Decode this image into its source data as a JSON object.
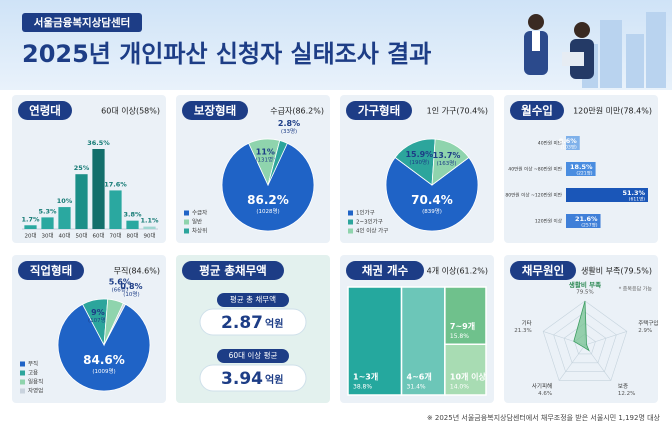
{
  "header": {
    "org": "서울금융복지상담센터",
    "title": "2025년 개인파산 신청자 실태조사 결과"
  },
  "chart_data": [
    {
      "type": "bar",
      "title": "연령대",
      "subtitle": "60대 이상(58%)",
      "categories": [
        "20대",
        "30대",
        "40대",
        "50대",
        "60대",
        "70대",
        "80대",
        "90대"
      ],
      "values": [
        1.7,
        5.3,
        10,
        25,
        36.5,
        17.6,
        3.8,
        1.1
      ],
      "value_labels": [
        "1.7%",
        "5.3%",
        "10%",
        "25%",
        "36.5%",
        "17.6%",
        "3.8%",
        "1.1%"
      ],
      "colors": [
        "#2aa8a0",
        "#2aa8a0",
        "#2aa8a0",
        "#1b8f88",
        "#136f6b",
        "#2aa8a0",
        "#2aa8a0",
        "#9fd6d1"
      ]
    },
    {
      "type": "pie",
      "title": "보장형태",
      "subtitle": "수급자(86.2%)",
      "categories": [
        "수급자",
        "일반",
        "차상위"
      ],
      "values": [
        86.2,
        11,
        2.8
      ],
      "value_labels": [
        "86.2%",
        "11%",
        "2.8%"
      ],
      "count_labels": [
        "(1028명)",
        "(131명)",
        "(33명)"
      ],
      "colors": [
        "#1f63c6",
        "#8fd4ad",
        "#2ca59c"
      ]
    },
    {
      "type": "pie",
      "title": "가구형태",
      "subtitle": "1인 가구(70.4%)",
      "categories": [
        "1인가구",
        "2~3인가구",
        "4인 이상 가구"
      ],
      "values": [
        70.4,
        15.9,
        13.7
      ],
      "value_labels": [
        "70.4%",
        "15.9%",
        "13.7%"
      ],
      "count_labels": [
        "(839명)",
        "(190명)",
        "(163명)"
      ],
      "colors": [
        "#1f63c6",
        "#2ca59c",
        "#8fd4ad"
      ]
    },
    {
      "type": "hbar",
      "title": "월수입",
      "subtitle": "120만원 미만(78.4%)",
      "categories": [
        "40만원 미만",
        "40만원 이상 ~80만원 미만",
        "80만원 이상 ~120만원 미만",
        "120만원 이상"
      ],
      "values": [
        8.6,
        18.5,
        51.3,
        21.6
      ],
      "value_labels": [
        "8.6%",
        "18.5%",
        "51.3%",
        "21.6%"
      ],
      "count_labels": [
        "(103명)",
        "(221명)",
        "(611명)",
        "(257명)"
      ],
      "colors": [
        "#7fb1ea",
        "#4a8de0",
        "#1a56b8",
        "#3f7fd8"
      ]
    },
    {
      "type": "pie",
      "title": "직업형태",
      "subtitle": "무직(84.6%)",
      "categories": [
        "무직",
        "고용",
        "일용직",
        "자영업"
      ],
      "values": [
        84.6,
        9,
        5.6,
        0.8
      ],
      "value_labels": [
        "84.6%",
        "9%",
        "5.6%",
        "0.8%"
      ],
      "count_labels": [
        "(1009명)",
        "(107명)",
        "(66명)",
        "(10명)"
      ],
      "colors": [
        "#1f63c6",
        "#2ca59c",
        "#8fd4ad",
        "#c9d3de"
      ]
    },
    {
      "type": "stat",
      "title": "평균 총채무액",
      "items": [
        {
          "label": "평균 총 채무액",
          "value": 2.87,
          "unit": "억원"
        },
        {
          "label": "60대 이상 평균",
          "value": 3.94,
          "unit": "억원"
        }
      ]
    },
    {
      "type": "treemap",
      "title": "채권 개수",
      "subtitle": "4개 이상(61.2%)",
      "categories": [
        "1~3개",
        "4~6개",
        "7~9개",
        "10개 이상"
      ],
      "values": [
        38.8,
        31.4,
        15.8,
        14.0
      ],
      "value_labels": [
        "38.8%",
        "31.4%",
        "15.8%",
        "14.0%"
      ],
      "colors": [
        "#25a89e",
        "#6cc6b8",
        "#6fc18c",
        "#a8dcb3"
      ]
    },
    {
      "type": "radar",
      "title": "채무원인",
      "subtitle": "생활비 부족(79.5%)",
      "note": "* 중복응답 가능",
      "categories": [
        "생활비 부족",
        "주택구입",
        "보증",
        "사기피해",
        "기타"
      ],
      "values": [
        79.5,
        2.9,
        12.2,
        4.6,
        21.3
      ],
      "value_labels": [
        "79.5%",
        "2.9%",
        "12.2%",
        "4.6%",
        "21.3%"
      ],
      "color": "#6fc18c"
    }
  ],
  "footnote": "※ 2025년 서울금융복지상담센터에서 채무조정을 받은 서울시민 1,192명 대상"
}
